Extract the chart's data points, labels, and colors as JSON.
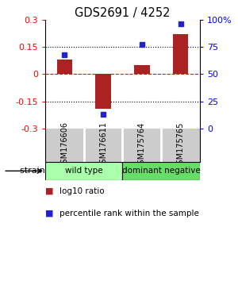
{
  "title": "GDS2691 / 4252",
  "samples": [
    "GSM176606",
    "GSM176611",
    "GSM175764",
    "GSM175765"
  ],
  "log10_ratio": [
    0.08,
    -0.19,
    0.05,
    0.22
  ],
  "percentile_rank": [
    68,
    13,
    77,
    96
  ],
  "bar_color": "#aa2222",
  "dot_color": "#2222cc",
  "ylim": [
    -0.3,
    0.3
  ],
  "yticks": [
    -0.3,
    -0.15,
    0,
    0.15,
    0.3
  ],
  "ytick_labels": [
    "-0.3",
    "-0.15",
    "0",
    "0.15",
    "0.3"
  ],
  "y2ticks": [
    0,
    25,
    50,
    75,
    100
  ],
  "y2tick_labels": [
    "0",
    "25",
    "50",
    "75",
    "100%"
  ],
  "groups": [
    {
      "label": "wild type",
      "samples": [
        0,
        1
      ],
      "color": "#aaffaa"
    },
    {
      "label": "dominant negative",
      "samples": [
        2,
        3
      ],
      "color": "#66dd66"
    }
  ],
  "strain_label": "strain",
  "legend_bar_label": "log10 ratio",
  "legend_dot_label": "percentile rank within the sample",
  "sample_bg": "#cccccc",
  "bar_width": 0.4
}
